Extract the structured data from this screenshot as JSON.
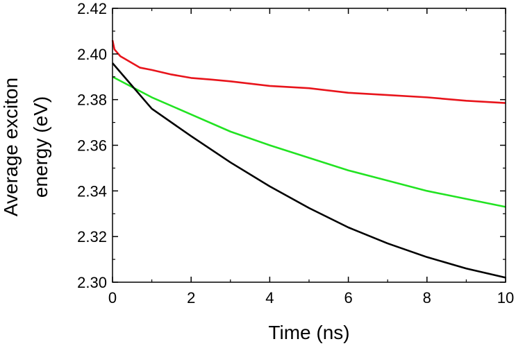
{
  "chart_data": {
    "type": "line",
    "title": "",
    "xlabel": "Time (ns)",
    "ylabel_lines": [
      "Average exciton",
      "energy (eV)"
    ],
    "xlim": [
      0,
      10
    ],
    "ylim": [
      2.3,
      2.42
    ],
    "x_ticks": [
      0,
      2,
      4,
      6,
      8,
      10
    ],
    "x_tick_labels": [
      "0",
      "2",
      "4",
      "6",
      "8",
      "10"
    ],
    "y_ticks": [
      2.3,
      2.32,
      2.34,
      2.36,
      2.38,
      2.4,
      2.42
    ],
    "y_tick_labels": [
      "2.30",
      "2.32",
      "2.34",
      "2.36",
      "2.38",
      "2.40",
      "2.42"
    ],
    "grid": false,
    "legend": "none",
    "series": [
      {
        "color": "#e8141b",
        "x": [
          0,
          0.05,
          0.1,
          0.2,
          0.3,
          0.5,
          0.7,
          1,
          1.5,
          2,
          2.5,
          3,
          4,
          5,
          6,
          7,
          8,
          9,
          10
        ],
        "y": [
          2.406,
          2.402,
          2.401,
          2.399,
          2.398,
          2.396,
          2.394,
          2.393,
          2.391,
          2.3895,
          2.3888,
          2.388,
          2.386,
          2.385,
          2.383,
          2.382,
          2.381,
          2.3795,
          2.3785
        ]
      },
      {
        "color": "#22e322",
        "x": [
          0,
          1,
          2,
          3,
          4,
          5,
          6,
          7,
          8,
          9,
          10
        ],
        "y": [
          2.39,
          2.381,
          2.3735,
          2.366,
          2.36,
          2.3545,
          2.349,
          2.3445,
          2.34,
          2.3365,
          2.333
        ]
      },
      {
        "color": "#000000",
        "x": [
          0,
          1,
          2,
          3,
          4,
          5,
          6,
          7,
          8,
          9,
          10
        ],
        "y": [
          2.396,
          2.376,
          2.364,
          2.3525,
          2.342,
          2.3325,
          2.324,
          2.317,
          2.311,
          2.306,
          2.302
        ]
      }
    ]
  }
}
